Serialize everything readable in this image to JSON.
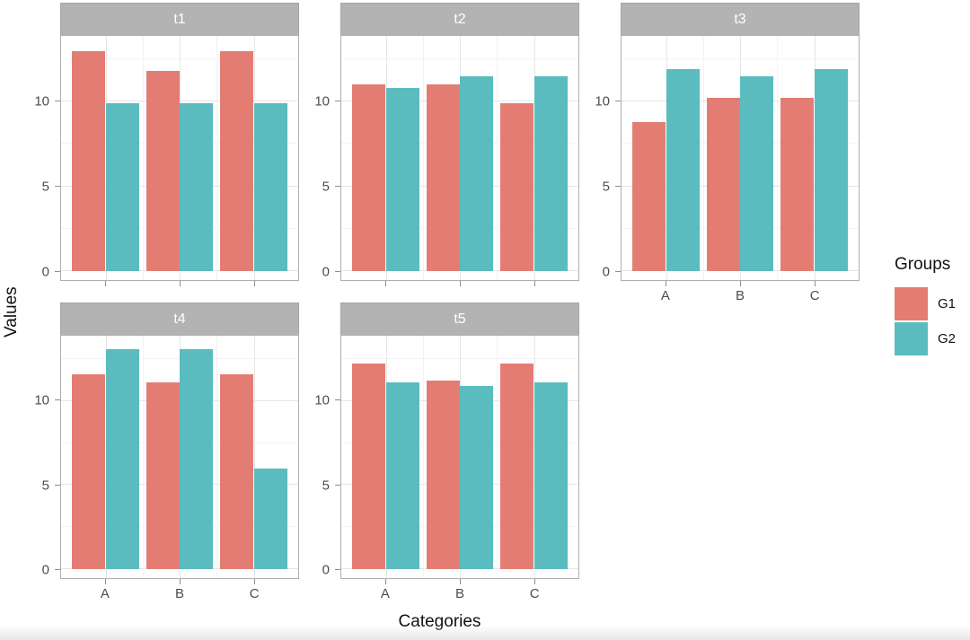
{
  "figure": {
    "y_axis_title": "Values",
    "x_axis_title": "Categories",
    "legend": {
      "title": "Groups",
      "entries": [
        {
          "label": "G1",
          "color": "#E37D73"
        },
        {
          "label": "G2",
          "color": "#5ABCBF"
        }
      ]
    }
  },
  "chart_data": {
    "type": "bar",
    "layout": "faceted grouped bar chart, 2 rows x 3 columns, ggplot style",
    "title": "",
    "xlabel": "Categories",
    "ylabel": "Values",
    "legend_position": "right",
    "grid": "on",
    "categories": [
      "A",
      "B",
      "C"
    ],
    "y_axis": {
      "ticks": [
        {
          "label": "10",
          "value": 10
        },
        {
          "label": "5",
          "value": 5
        },
        {
          "label": "0",
          "value": 0
        }
      ],
      "major_gridlines": [
        0,
        5,
        10
      ],
      "minor_gridlines": [
        2.5,
        7.5,
        12.5
      ],
      "range_shown": [
        -0.53,
        13.88
      ]
    },
    "facets": [
      {
        "name": "t1",
        "show_x_labels": false,
        "series": [
          {
            "name": "G1",
            "values": [
              13.0,
              11.8,
              13.0
            ]
          },
          {
            "name": "G2",
            "values": [
              9.9,
              9.9,
              9.9
            ]
          }
        ]
      },
      {
        "name": "t2",
        "show_x_labels": false,
        "series": [
          {
            "name": "G1",
            "values": [
              11.0,
              11.0,
              9.9
            ]
          },
          {
            "name": "G2",
            "values": [
              10.8,
              11.5,
              11.5
            ]
          }
        ]
      },
      {
        "name": "t3",
        "show_x_labels": true,
        "series": [
          {
            "name": "G1",
            "values": [
              8.8,
              10.2,
              10.2
            ]
          },
          {
            "name": "G2",
            "values": [
              11.9,
              11.5,
              11.9
            ]
          }
        ]
      },
      {
        "name": "t4",
        "show_x_labels": true,
        "series": [
          {
            "name": "G1",
            "values": [
              11.6,
              11.1,
              11.6
            ]
          },
          {
            "name": "G2",
            "values": [
              13.1,
              13.1,
              6.0
            ]
          }
        ]
      },
      {
        "name": "t5",
        "show_x_labels": true,
        "series": [
          {
            "name": "G1",
            "values": [
              12.2,
              11.2,
              12.2
            ]
          },
          {
            "name": "G2",
            "values": [
              11.1,
              10.9,
              11.1
            ]
          }
        ]
      }
    ]
  }
}
